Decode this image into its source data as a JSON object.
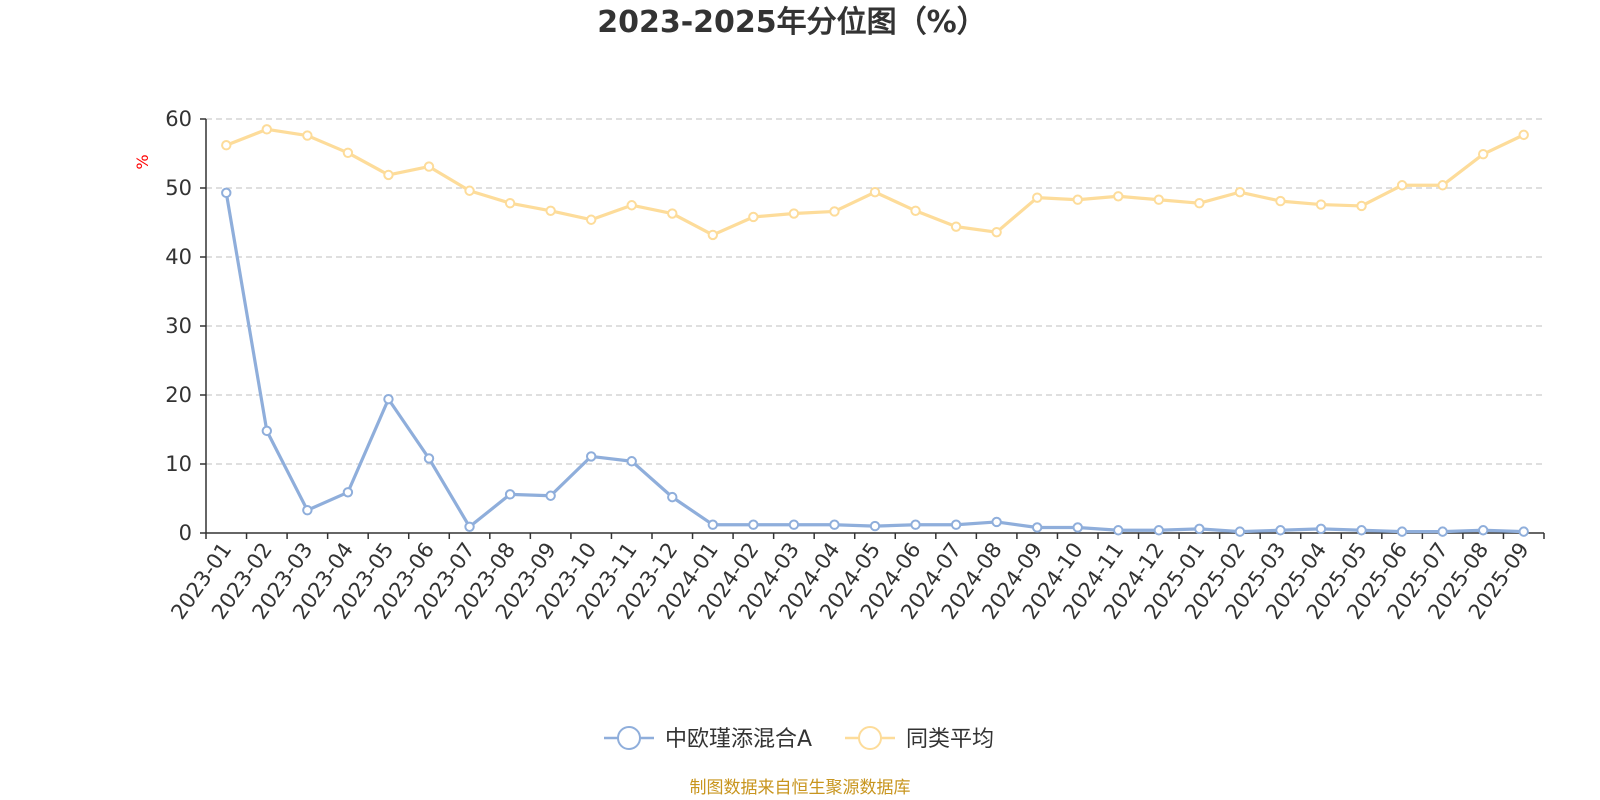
{
  "colors": {
    "series_a": "#8faedb",
    "series_b": "#fddc9a",
    "unit": "#ff0000",
    "source": "#c8951e",
    "grid": "#cccccc",
    "axis": "#333333"
  },
  "source_text": "制图数据来自恒生聚源数据库",
  "chart_data": {
    "type": "line",
    "title": "2023-2025年分位图（%）",
    "ylabel": "%",
    "xlabel": "",
    "ylim": [
      0,
      60
    ],
    "yticks": [
      0,
      10,
      20,
      30,
      40,
      50,
      60
    ],
    "grid": "horizontal-dashed",
    "legend_position": "bottom-center",
    "x": [
      "2023-01",
      "2023-02",
      "2023-03",
      "2023-04",
      "2023-05",
      "2023-06",
      "2023-07",
      "2023-08",
      "2023-09",
      "2023-10",
      "2023-11",
      "2023-12",
      "2024-01",
      "2024-02",
      "2024-03",
      "2024-04",
      "2024-05",
      "2024-06",
      "2024-07",
      "2024-08",
      "2024-09",
      "2024-10",
      "2024-11",
      "2024-12",
      "2025-01",
      "2025-02",
      "2025-03",
      "2025-04",
      "2025-05",
      "2025-06",
      "2025-07",
      "2025-08",
      "2025-09"
    ],
    "series": [
      {
        "name": "中欧瑾添混合A",
        "values": [
          49.3,
          14.8,
          3.3,
          5.9,
          19.4,
          10.8,
          0.9,
          5.6,
          5.4,
          11.1,
          10.4,
          5.2,
          1.2,
          1.2,
          1.2,
          1.2,
          1.0,
          1.2,
          1.2,
          1.6,
          0.8,
          0.8,
          0.4,
          0.4,
          0.6,
          0.2,
          0.4,
          0.6,
          0.4,
          0.2,
          0.2,
          0.4,
          0.2
        ]
      },
      {
        "name": "同类平均",
        "values": [
          56.2,
          58.5,
          57.6,
          55.1,
          51.9,
          53.1,
          49.6,
          47.8,
          46.7,
          45.4,
          47.5,
          46.3,
          43.2,
          45.8,
          46.3,
          46.6,
          49.4,
          46.7,
          44.4,
          43.6,
          48.6,
          48.3,
          48.8,
          48.3,
          47.8,
          49.4,
          48.1,
          47.6,
          47.4,
          50.4,
          50.4,
          54.9,
          57.7
        ]
      }
    ]
  }
}
